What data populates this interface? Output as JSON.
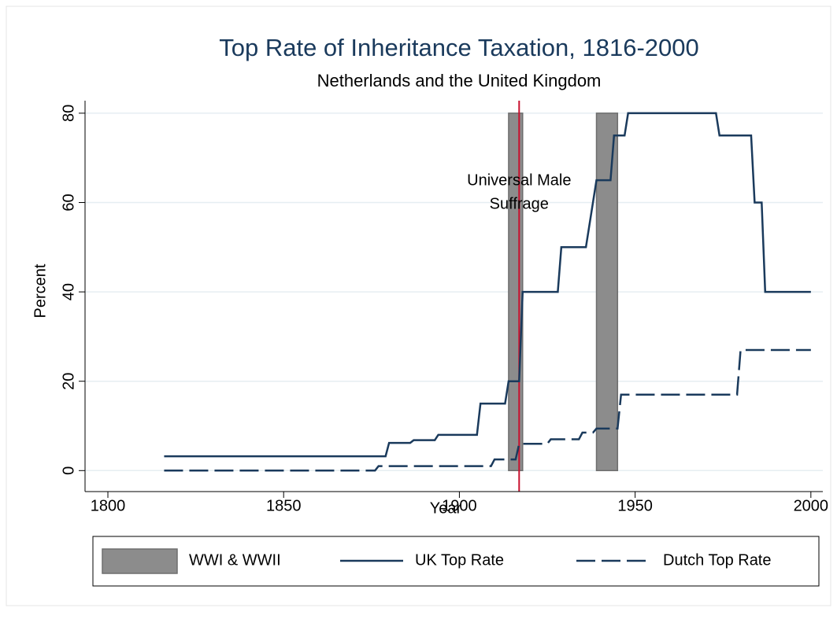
{
  "chart_data": {
    "type": "line",
    "title": "Top Rate of Inheritance Taxation, 1816-2000",
    "subtitle": "Netherlands and the United Kingdom",
    "x_label": "Year",
    "y_label": "Percent",
    "xlim": [
      1793.5,
      2003.4
    ],
    "ylim": [
      -4.7,
      82.8
    ],
    "xticks": [
      1800,
      1850,
      1900,
      1950,
      2000
    ],
    "yticks": [
      0,
      20,
      40,
      60,
      80
    ],
    "grid": true,
    "shaded_periods": {
      "name": "WWI & WWII",
      "color": "#8c8c8c",
      "ranges": [
        [
          1914,
          1918
        ],
        [
          1939,
          1945
        ]
      ],
      "yrange": [
        0,
        80
      ]
    },
    "vline": {
      "x": 1917,
      "color": "#c8102e"
    },
    "annotation": [
      "Universal Male",
      "Suffrage"
    ],
    "series": [
      {
        "name": "UK Top Rate",
        "color": "#1a3a5c",
        "dashed": false,
        "x": [
          1816,
          1879,
          1880,
          1886,
          1887,
          1893,
          1894,
          1905,
          1906,
          1913,
          1914,
          1917,
          1918,
          1928,
          1929,
          1936,
          1939,
          1943,
          1944,
          1947,
          1948,
          1973,
          1974,
          1983,
          1984,
          1986,
          1987,
          2000
        ],
        "values": [
          3.2,
          3.2,
          6.2,
          6.2,
          6.8,
          6.8,
          8,
          8,
          15,
          15,
          20,
          20,
          40,
          40,
          50,
          50,
          65,
          65,
          75,
          75,
          80,
          80,
          75,
          75,
          60,
          60,
          40,
          40
        ]
      },
      {
        "name": "Dutch Top Rate",
        "color": "#1a3a5c",
        "dashed": true,
        "x": [
          1816,
          1876,
          1877,
          1909,
          1910,
          1916,
          1917,
          1925,
          1926,
          1934,
          1935,
          1938,
          1939,
          1945,
          1946,
          1979,
          1980,
          2000
        ],
        "values": [
          0,
          0,
          1,
          1,
          2.5,
          2.5,
          6,
          6,
          7,
          7,
          8.5,
          8.5,
          9.4,
          9.4,
          17,
          17,
          27,
          27
        ]
      }
    ]
  }
}
